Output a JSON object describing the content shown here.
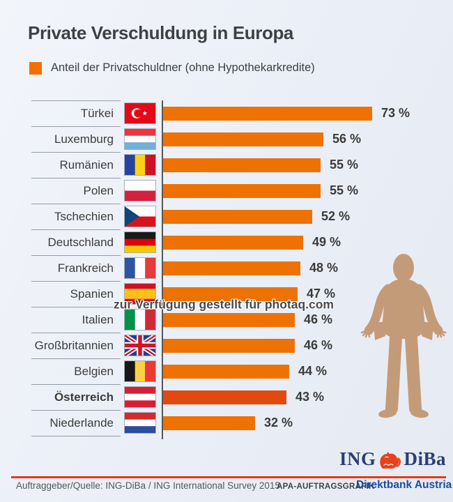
{
  "title": "Private Verschuldung in Europa",
  "legend": {
    "label": "Anteil der Privatschuldner (ohne Hypothekarkredite)",
    "color": "#ee7203"
  },
  "chart_data": {
    "type": "bar",
    "orientation": "horizontal",
    "title": "Private Verschuldung in Europa",
    "legend_label": "Anteil der Privatschuldner (ohne Hypothekarkredite)",
    "value_suffix": " %",
    "xlim": [
      0,
      78
    ],
    "bar_color": "#ee7203",
    "highlight_color": "#e2490f",
    "categories": [
      "Türkei",
      "Luxemburg",
      "Rumänien",
      "Polen",
      "Tschechien",
      "Deutschland",
      "Frankreich",
      "Spanien",
      "Italien",
      "Großbritannien",
      "Belgien",
      "Österreich",
      "Niederlande"
    ],
    "values": [
      73,
      56,
      55,
      55,
      52,
      49,
      48,
      47,
      46,
      46,
      44,
      43,
      32
    ],
    "rows": [
      {
        "label": "Türkei",
        "flag": "turkey",
        "value": 73,
        "highlight": false
      },
      {
        "label": "Luxemburg",
        "flag": "luxembourg",
        "value": 56,
        "highlight": false
      },
      {
        "label": "Rumänien",
        "flag": "romania",
        "value": 55,
        "highlight": false
      },
      {
        "label": "Polen",
        "flag": "poland",
        "value": 55,
        "highlight": false
      },
      {
        "label": "Tschechien",
        "flag": "czechia",
        "value": 52,
        "highlight": false
      },
      {
        "label": "Deutschland",
        "flag": "germany",
        "value": 49,
        "highlight": false
      },
      {
        "label": "Frankreich",
        "flag": "france",
        "value": 48,
        "highlight": false
      },
      {
        "label": "Spanien",
        "flag": "spain",
        "value": 47,
        "highlight": false
      },
      {
        "label": "Italien",
        "flag": "italy",
        "value": 46,
        "highlight": false
      },
      {
        "label": "Großbritannien",
        "flag": "uk",
        "value": 46,
        "highlight": false
      },
      {
        "label": "Belgien",
        "flag": "belgium",
        "value": 44,
        "highlight": false
      },
      {
        "label": "Österreich",
        "flag": "austria",
        "value": 43,
        "highlight": true
      },
      {
        "label": "Niederlande",
        "flag": "netherlands",
        "value": 32,
        "highlight": false
      }
    ]
  },
  "watermark": "zur Verfügung gestellt für photaq.com",
  "figure_color": "#c49b78",
  "footer": {
    "source": "Auftraggeber/Quelle: ING-DiBa / ING International Survey 2015",
    "agency": "APA-AUFTRAGSGRAFIK",
    "brand_sub": "Direktbank Austria",
    "logo_left": "ING",
    "logo_right": "DiBa",
    "line_color": "#e23a16"
  }
}
